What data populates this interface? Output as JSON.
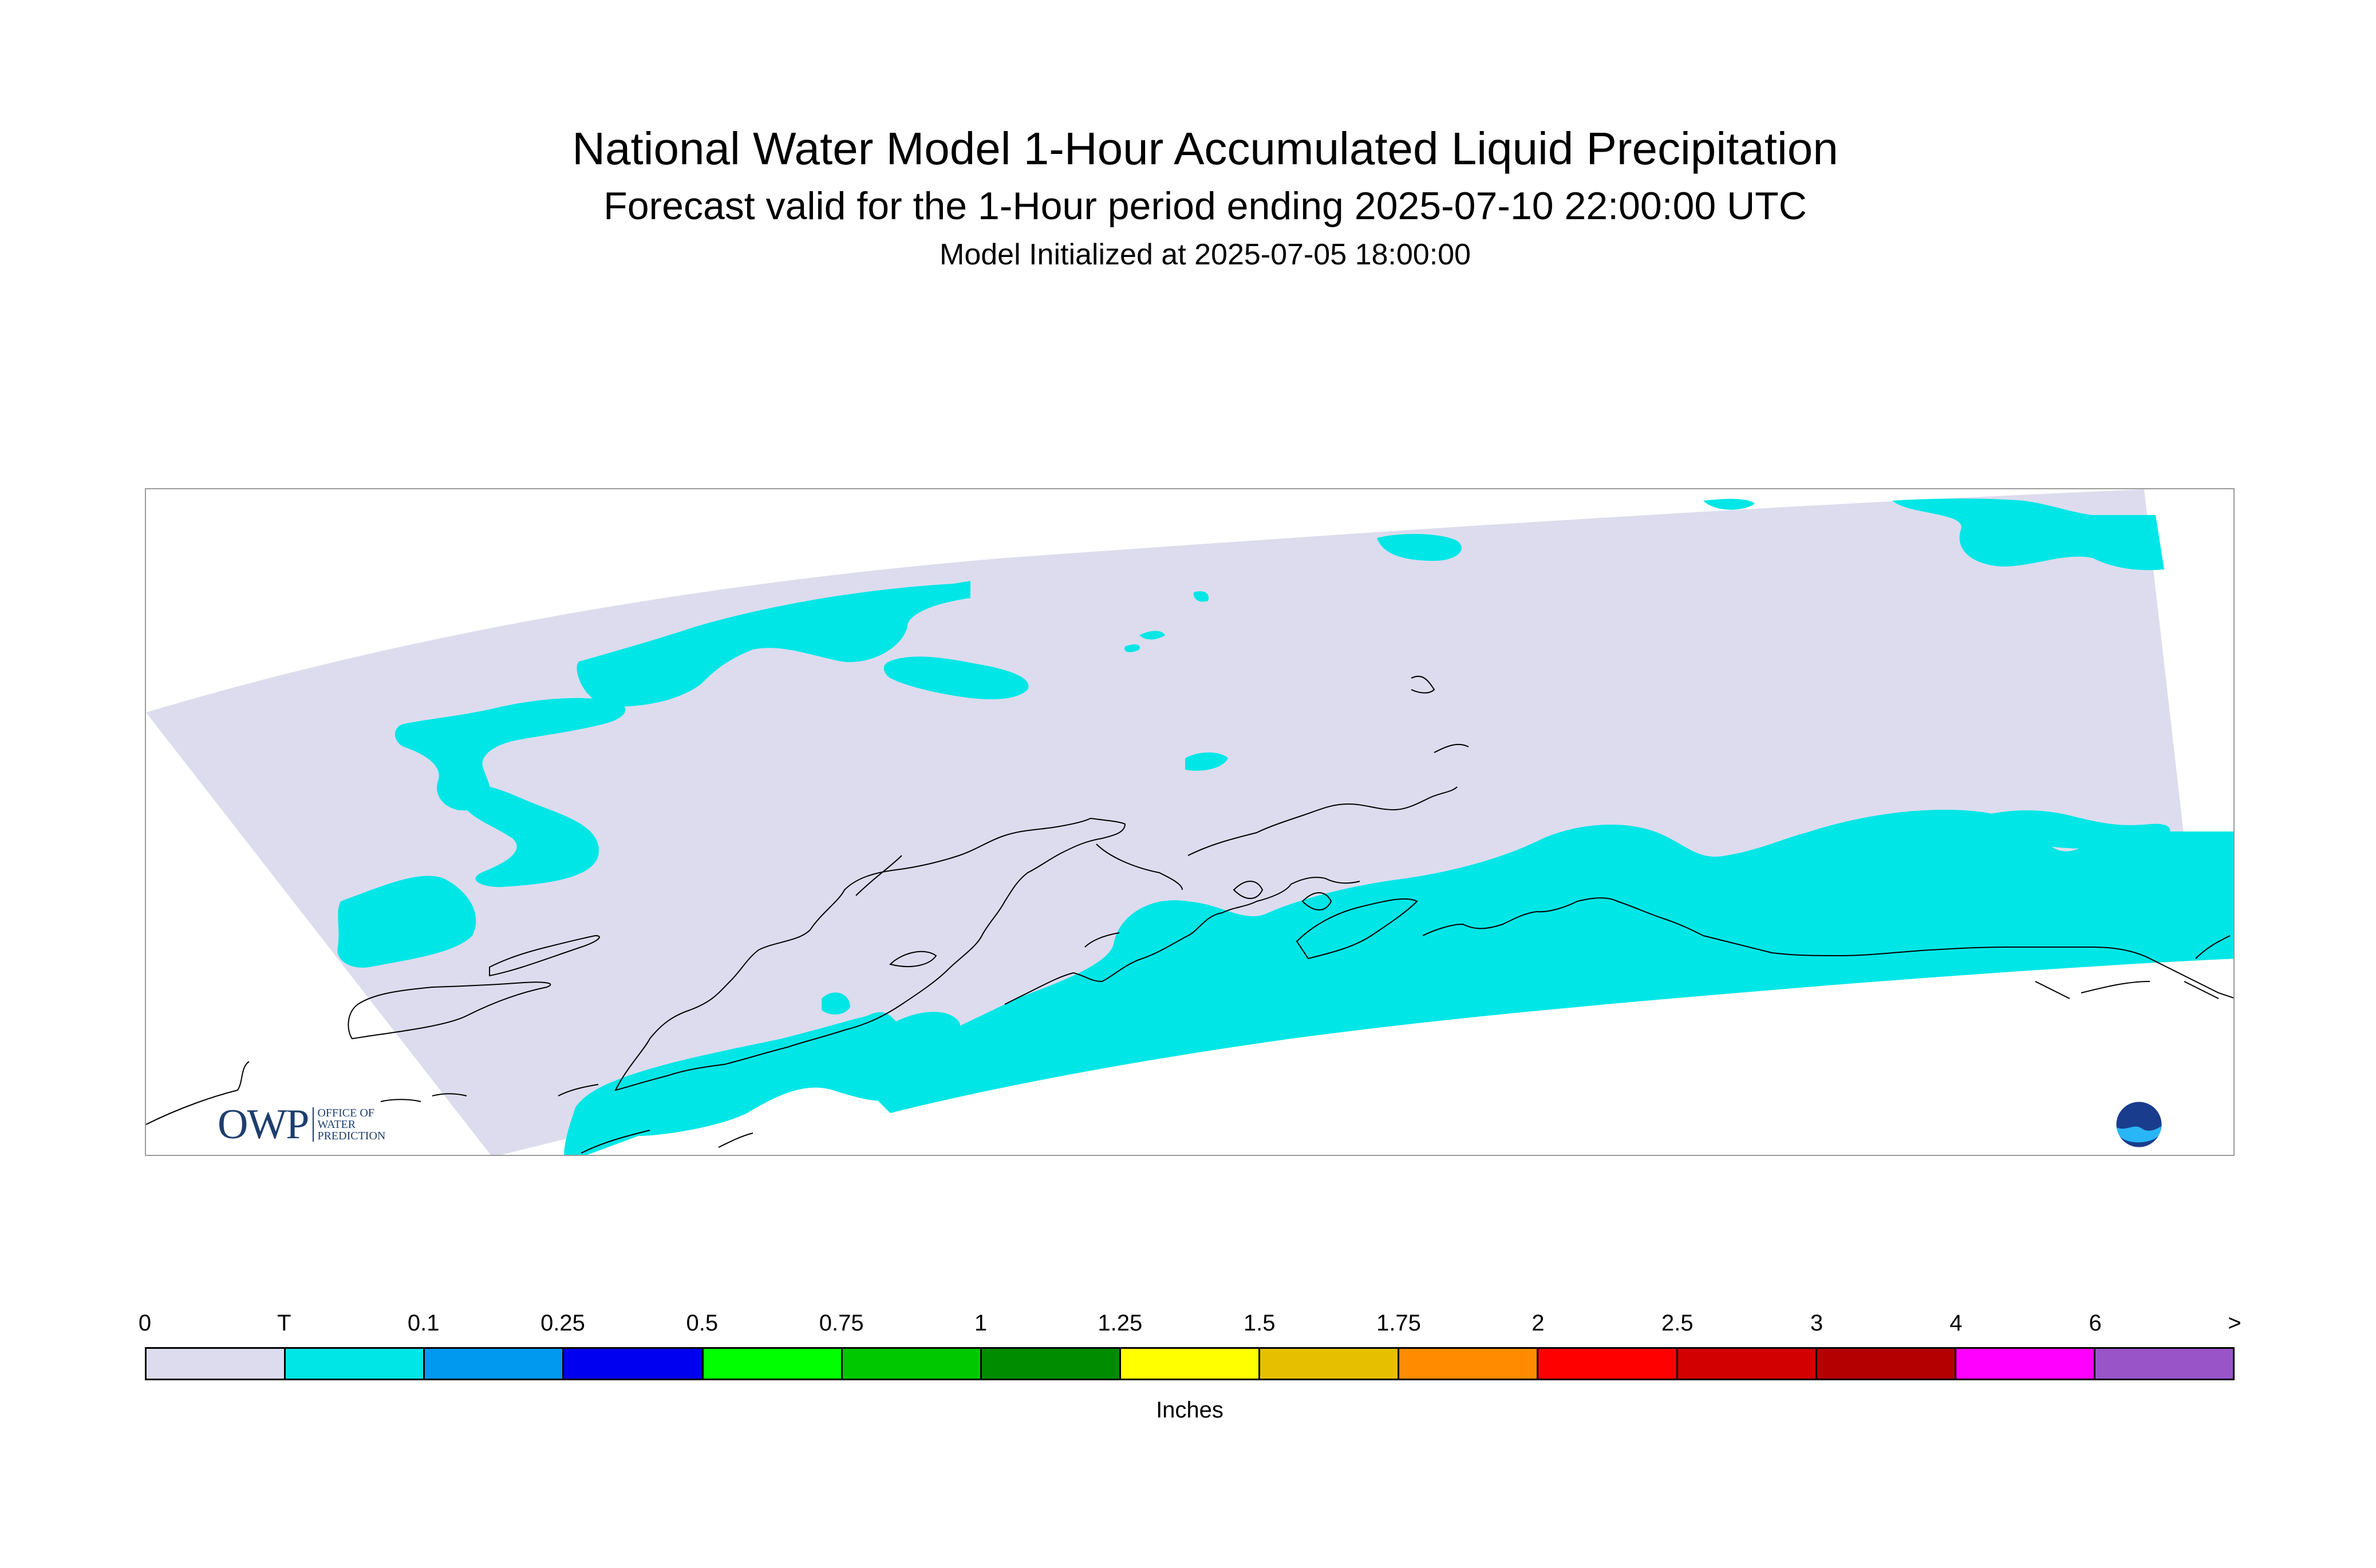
{
  "header": {
    "title": "National Water Model 1-Hour Accumulated Liquid Precipitation",
    "subtitle": "Forecast valid for the 1-Hour period ending 2025-07-10 22:00:00 UTC",
    "init": "Model Initialized at 2025-07-05 18:00:00"
  },
  "map": {
    "region": "Alaska",
    "domain_fill_color": "#dcdcee",
    "precip_fill_color": "#00e6e6",
    "coastline_color": "#000000"
  },
  "logos": {
    "owp": {
      "text": "OWP",
      "sub": [
        "OFFICE OF",
        "WATER",
        "PREDICTION"
      ]
    },
    "noaa": {
      "text": "NOAA",
      "icon": "noaa-logo-icon"
    }
  },
  "legend": {
    "tick_labels": [
      "0",
      "T",
      "0.1",
      "0.25",
      "0.5",
      "0.75",
      "1",
      "1.25",
      "1.5",
      "1.75",
      "2",
      "2.5",
      "3",
      "4",
      "6",
      ">"
    ],
    "colors": [
      "#dcdcee",
      "#00e6e6",
      "#0099f0",
      "#0000f0",
      "#00ff00",
      "#00c800",
      "#008c00",
      "#ffff00",
      "#e6c000",
      "#ff8c00",
      "#ff0000",
      "#d20000",
      "#b40000",
      "#ff00ff",
      "#9955c8"
    ],
    "units": "Inches"
  }
}
